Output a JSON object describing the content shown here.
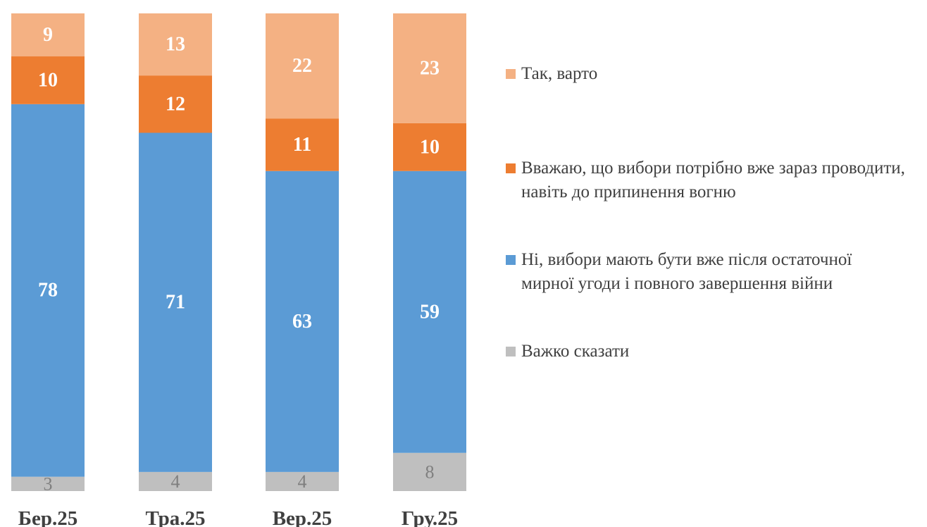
{
  "chart_data": {
    "type": "bar",
    "stacked": true,
    "categories": [
      "Бер.25",
      "Тра.25",
      "Вер.25",
      "Гру.25"
    ],
    "series": [
      {
        "name": "Важко сказати",
        "color": "#bfbfbf",
        "label_color": "#7f7f7f",
        "values": [
          3,
          4,
          4,
          8
        ]
      },
      {
        "name": "Ні, вибори мають бути вже після остаточної мирної угоди і повного завершення війни",
        "color": "#5b9bd5",
        "label_color": "#ffffff",
        "values": [
          78,
          71,
          63,
          59
        ]
      },
      {
        "name": "Вважаю, що вибори потрібно вже зараз проводити, навіть до припинення вогню",
        "color": "#ed7d31",
        "label_color": "#ffffff",
        "values": [
          10,
          12,
          11,
          10
        ]
      },
      {
        "name": "Так, варто",
        "color": "#f4b183",
        "label_color": "#ffffff",
        "values": [
          9,
          13,
          22,
          23
        ]
      }
    ],
    "legend_order": [
      3,
      2,
      1,
      0
    ],
    "ylim": [
      0,
      100
    ],
    "grid": false,
    "legend_position": "right"
  }
}
